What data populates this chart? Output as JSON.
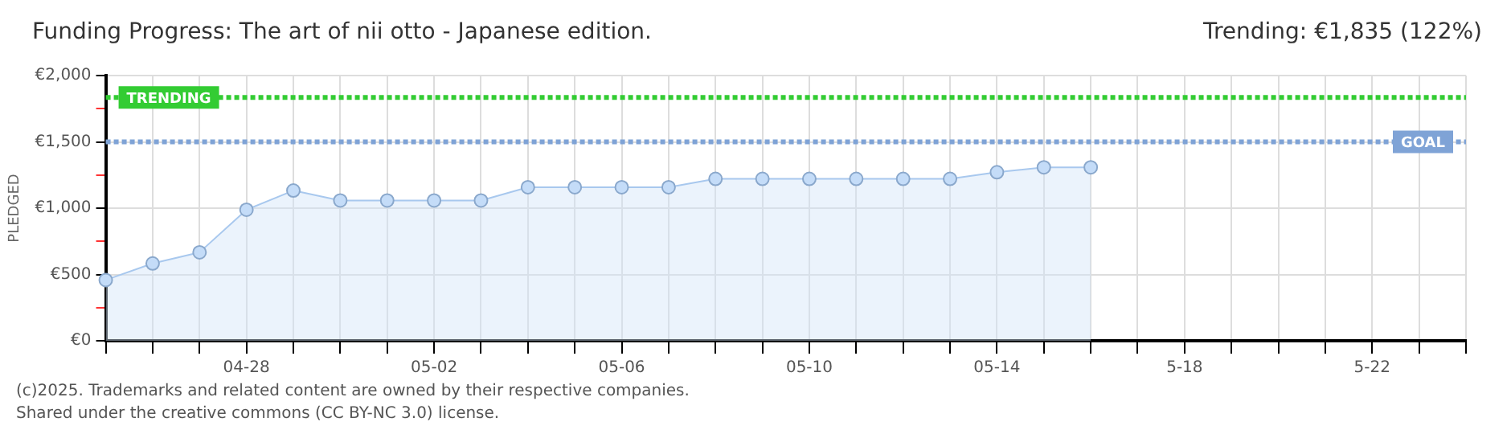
{
  "chart_data": {
    "type": "area",
    "title": "Funding Progress: The art of nii otto - Japanese edition.",
    "subtitle": "Trending: €1,835 (122%)",
    "ylabel": "PLEDGED",
    "categories": [
      null,
      null,
      null,
      "04-28",
      null,
      null,
      null,
      "05-02",
      null,
      null,
      null,
      "05-06",
      null,
      null,
      null,
      "05-10",
      null,
      null,
      null,
      "05-14",
      null,
      null,
      null,
      "5-18",
      null,
      null,
      null,
      "5-22",
      null,
      null
    ],
    "series": [
      {
        "color": "#a8c8ee",
        "values": [
          458,
          583,
          667,
          988,
          1133,
          1058,
          1058,
          1058,
          1058,
          1158,
          1158,
          1158,
          1158,
          1221,
          1221,
          1221,
          1221,
          1221,
          1221,
          1271,
          1308,
          1308,
          null,
          null,
          null,
          null,
          null,
          null,
          null,
          null
        ]
      }
    ],
    "ylim": [
      0,
      2000
    ],
    "yticks": [
      {
        "value": 0,
        "label": "€0"
      },
      {
        "value": 250,
        "label": null
      },
      {
        "value": 500,
        "label": "€500"
      },
      {
        "value": 750,
        "label": null
      },
      {
        "value": 1000,
        "label": "€1,000"
      },
      {
        "value": 1250,
        "label": null
      },
      {
        "value": 1500,
        "label": "€1,500"
      },
      {
        "value": 1750,
        "label": null
      },
      {
        "value": 2000,
        "label": "€2,000"
      }
    ],
    "ref_lines": [
      {
        "axis": "y",
        "value": 1835,
        "label": "TRENDING",
        "color": "#33cc33",
        "line_style": "dotted"
      },
      {
        "axis": "y",
        "value": 1500,
        "label": "GOAL",
        "color": "#7fa3d6",
        "line_style": "dotted"
      }
    ],
    "grid": true,
    "legend": false,
    "marker": "circle",
    "annotations": [
      "(c)2025. Trademarks and related content are owned by their respective companies.",
      "Shared under the creative commons (CC BY-NC 3.0) license."
    ]
  }
}
